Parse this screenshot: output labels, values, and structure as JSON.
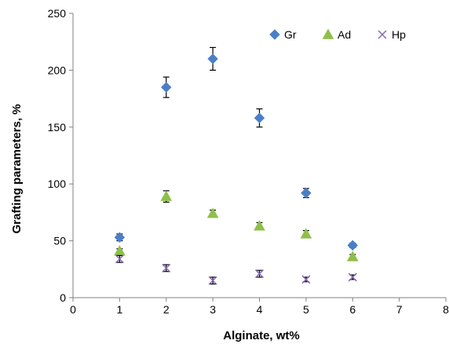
{
  "chart_data": {
    "type": "scatter",
    "title": "",
    "xlabel": "Alginate, wt%",
    "ylabel": "Grafting parameters, %",
    "xlim": [
      0,
      8
    ],
    "ylim": [
      0,
      250
    ],
    "xticks": [
      0,
      1,
      2,
      3,
      4,
      5,
      6,
      7,
      8
    ],
    "yticks": [
      0,
      50,
      100,
      150,
      200,
      250
    ],
    "grid": false,
    "legend_position": "top-right",
    "series": [
      {
        "name": "Gr",
        "marker": "diamond",
        "color": "#4a7fc8",
        "x": [
          1,
          2,
          3,
          4,
          5,
          6
        ],
        "y": [
          53,
          185,
          210,
          158,
          92,
          46
        ],
        "err": [
          3,
          9,
          10,
          8,
          4,
          2
        ]
      },
      {
        "name": "Ad",
        "marker": "triangle",
        "color": "#8fbf4a",
        "x": [
          1,
          2,
          3,
          4,
          5,
          6
        ],
        "y": [
          41,
          89,
          74,
          63,
          56,
          36
        ],
        "err": [
          2,
          5,
          3,
          3,
          3,
          2
        ]
      },
      {
        "name": "Hp",
        "marker": "x",
        "color": "#8a6bb4",
        "x": [
          1,
          2,
          3,
          4,
          5,
          6
        ],
        "y": [
          34,
          26,
          15,
          21,
          16,
          18
        ],
        "err": [
          3,
          3,
          3,
          3,
          2,
          2
        ]
      }
    ]
  }
}
